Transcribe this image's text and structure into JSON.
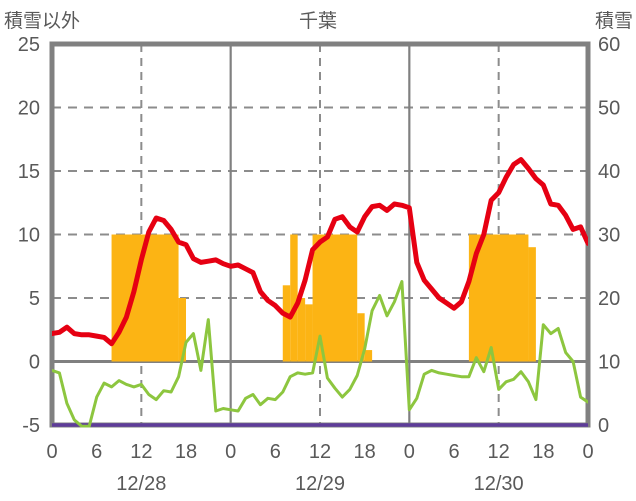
{
  "header": {
    "left_axis_title": "積雪以外",
    "station_title": "千葉",
    "right_axis_title": "積雪"
  },
  "colors": {
    "background": "#ffffff",
    "frame": "#808080",
    "grid": "#8c8c8c",
    "text": "#595959",
    "red_line": "#e60012",
    "green_line": "#8dc63f",
    "orange_bar": "#fcb414",
    "purple_line": "#5e3c99"
  },
  "chart_data": {
    "type": "line+bar",
    "title": "千葉",
    "x_axis": {
      "hours_total": 72,
      "tick_interval_hours": 6,
      "tick_labels": [
        "0",
        "6",
        "12",
        "18",
        "0",
        "6",
        "12",
        "18",
        "0",
        "6",
        "12",
        "18",
        "0"
      ],
      "date_labels": [
        {
          "label": "12/28",
          "center_hour": 12
        },
        {
          "label": "12/29",
          "center_hour": 36
        },
        {
          "label": "12/30",
          "center_hour": 60
        }
      ],
      "dashed_gridline_hours": [
        12,
        36,
        60
      ],
      "solid_gridline_hours": [
        24,
        48
      ]
    },
    "left_axis": {
      "title": "積雪以外",
      "min": -5,
      "max": 25,
      "tick_step": 5,
      "tick_labels": [
        "25",
        "20",
        "15",
        "10",
        "5",
        "0",
        "-5"
      ],
      "dashed_gridline_values": [
        20,
        15,
        10,
        5
      ],
      "solid_zero_line": 0
    },
    "right_axis": {
      "title": "積雪",
      "min": 0,
      "max": 60,
      "tick_step": 10,
      "tick_labels": [
        "60",
        "50",
        "40",
        "30",
        "20",
        "10",
        "0"
      ]
    },
    "grid_on": true,
    "legend": "none",
    "series": [
      {
        "name": "red_line",
        "type": "line",
        "axis": "left",
        "color_key": "red_line",
        "x_step_hours": 1,
        "values": [
          2.2,
          2.3,
          2.7,
          2.2,
          2.1,
          2.1,
          2.0,
          1.9,
          1.4,
          2.3,
          3.5,
          5.5,
          8.0,
          10.2,
          11.3,
          11.1,
          10.4,
          9.4,
          9.2,
          8.1,
          7.8,
          7.9,
          8.0,
          7.7,
          7.5,
          7.6,
          7.3,
          7.0,
          5.5,
          4.8,
          4.4,
          3.8,
          3.5,
          4.6,
          6.4,
          8.8,
          9.4,
          9.8,
          11.2,
          11.4,
          10.6,
          10.2,
          11.4,
          12.2,
          12.3,
          11.9,
          12.4,
          12.3,
          12.1,
          7.8,
          6.4,
          5.7,
          5.0,
          4.6,
          4.2,
          4.7,
          6.3,
          8.5,
          10.0,
          12.7,
          13.3,
          14.5,
          15.5,
          15.9,
          15.2,
          14.4,
          13.9,
          12.4,
          12.3,
          11.5,
          10.4,
          10.6,
          9.3
        ]
      },
      {
        "name": "green_line",
        "type": "line",
        "axis": "left",
        "color_key": "green_line",
        "x_step_hours": 1,
        "values": [
          -0.7,
          -0.9,
          -3.3,
          -4.6,
          -5.1,
          -5.1,
          -2.8,
          -1.7,
          -2.0,
          -1.5,
          -1.8,
          -2.0,
          -1.8,
          -2.6,
          -3.0,
          -2.3,
          -2.4,
          -1.2,
          1.5,
          2.2,
          -0.7,
          3.3,
          -3.9,
          -3.7,
          -3.8,
          -3.9,
          -2.9,
          -2.6,
          -3.4,
          -2.9,
          -3.0,
          -2.4,
          -1.2,
          -0.9,
          -1.0,
          -0.9,
          2.0,
          -1.3,
          -2.1,
          -2.8,
          -2.2,
          -1.1,
          1.0,
          4.0,
          5.2,
          3.6,
          4.7,
          6.3,
          -3.8,
          -2.9,
          -1.0,
          -0.7,
          -0.9,
          -1.0,
          -1.1,
          -1.2,
          -1.2,
          0.3,
          -0.8,
          1.1,
          -2.2,
          -1.6,
          -1.4,
          -0.8,
          -1.6,
          -3.0,
          2.9,
          2.2,
          2.6,
          0.7,
          0.0,
          -2.8,
          -3.2
        ]
      },
      {
        "name": "orange_bars",
        "type": "bar",
        "axis": "left",
        "color_key": "orange_bar",
        "baseline_value": 0,
        "bar_runs": [
          {
            "from_hour": 8,
            "to_hour": 17,
            "value": 10
          },
          {
            "from_hour": 17,
            "to_hour": 18,
            "value": 5
          },
          {
            "from_hour": 31,
            "to_hour": 32,
            "value": 6
          },
          {
            "from_hour": 32,
            "to_hour": 33,
            "value": 10
          },
          {
            "from_hour": 33,
            "to_hour": 34,
            "value": 5
          },
          {
            "from_hour": 34,
            "to_hour": 35,
            "value": 4.5
          },
          {
            "from_hour": 35,
            "to_hour": 41,
            "value": 10
          },
          {
            "from_hour": 41,
            "to_hour": 42,
            "value": 3.8
          },
          {
            "from_hour": 42,
            "to_hour": 43,
            "value": 0.9
          },
          {
            "from_hour": 56,
            "to_hour": 64,
            "value": 10
          },
          {
            "from_hour": 64,
            "to_hour": 65,
            "value": 9
          }
        ]
      },
      {
        "name": "purple_line",
        "type": "line",
        "axis": "right",
        "color_key": "purple_line",
        "constant_value": 0,
        "from_hour": 0,
        "to_hour": 72
      }
    ]
  }
}
